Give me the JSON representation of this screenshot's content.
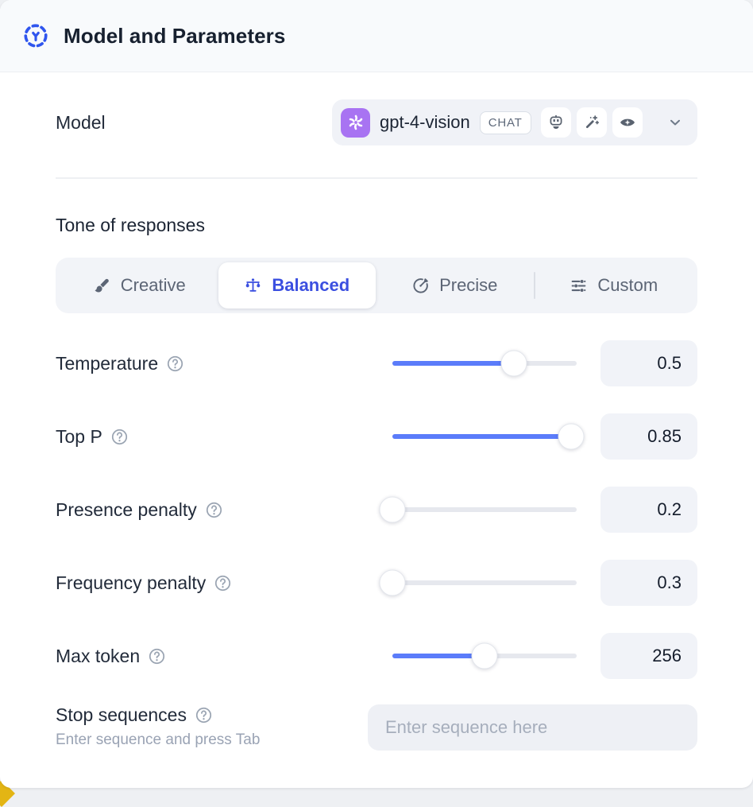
{
  "header": {
    "title": "Model and Parameters",
    "icon": "model-selector-icon"
  },
  "model_row": {
    "label": "Model",
    "select": {
      "provider_icon": "openai-logo",
      "name": "gpt-4-vision",
      "type_badge": "CHAT",
      "capability_icons": [
        "robot-icon",
        "magic-wand-icon",
        "vision-eye-icon"
      ],
      "chevron_icon": "chevron-down-icon"
    }
  },
  "tone": {
    "heading": "Tone of responses",
    "tabs": [
      {
        "label": "Creative",
        "icon": "paintbrush-icon",
        "selected": false,
        "divider_before": false
      },
      {
        "label": "Balanced",
        "icon": "scales-icon",
        "selected": true,
        "divider_before": false
      },
      {
        "label": "Precise",
        "icon": "target-icon",
        "selected": false,
        "divider_before": false
      },
      {
        "label": "Custom",
        "icon": "sliders-icon",
        "selected": false,
        "divider_before": true
      }
    ]
  },
  "parameters": [
    {
      "label": "Temperature",
      "help_icon": "help-icon",
      "value": "0.5",
      "slider_fill": 0.66
    },
    {
      "label": "Top P",
      "help_icon": "help-icon",
      "value": "0.85",
      "slider_fill": 0.97
    },
    {
      "label": "Presence penalty",
      "help_icon": "help-icon",
      "value": "0.2",
      "slider_fill": 0
    },
    {
      "label": "Frequency penalty",
      "help_icon": "help-icon",
      "value": "0.3",
      "slider_fill": 0
    },
    {
      "label": "Max token",
      "help_icon": "help-icon",
      "value": "256",
      "slider_fill": 0.5
    }
  ],
  "stop_sequences": {
    "label": "Stop sequences",
    "help_icon": "help-icon",
    "hint": "Enter sequence and press Tab",
    "placeholder": "Enter sequence here"
  },
  "colors": {
    "accent_blue": "#3b4fe0",
    "slider_blue": "#5b7cfa",
    "provider_purple": "#a873f2",
    "header_icon_blue": "#2f55ee"
  }
}
